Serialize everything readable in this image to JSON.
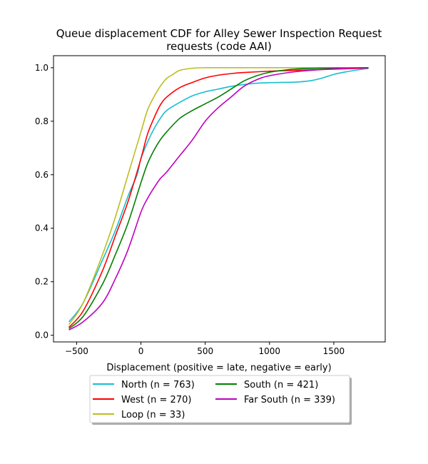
{
  "chart_data": {
    "type": "line",
    "title_line1": "Queue displacement CDF for Alley Sewer Inspection Request",
    "title_line2": "requests (code AAI)",
    "xlabel": "Displacement (positive = late, negative = early)",
    "ylabel": "",
    "xlim": [
      -680,
      1900
    ],
    "ylim": [
      -0.025,
      1.045
    ],
    "xticks": [
      -500,
      0,
      500,
      1000,
      1500
    ],
    "xtick_labels": [
      "−500",
      "0",
      "500",
      "1000",
      "1500"
    ],
    "yticks": [
      0.0,
      0.2,
      0.4,
      0.6,
      0.8,
      1.0
    ],
    "ytick_labels": [
      "0.0",
      "0.2",
      "0.4",
      "0.6",
      "0.8",
      "1.0"
    ],
    "grid": false,
    "legend_position": "below the axes, centered, two columns",
    "series": [
      {
        "name": "North (n = 763)",
        "color": "#17becf",
        "points": [
          [
            -560,
            0.05
          ],
          [
            -450,
            0.12
          ],
          [
            -300,
            0.28
          ],
          [
            -200,
            0.39
          ],
          [
            -100,
            0.52
          ],
          [
            -30,
            0.6
          ],
          [
            0,
            0.66
          ],
          [
            50,
            0.72
          ],
          [
            100,
            0.77
          ],
          [
            150,
            0.81
          ],
          [
            200,
            0.84
          ],
          [
            300,
            0.87
          ],
          [
            400,
            0.895
          ],
          [
            500,
            0.91
          ],
          [
            600,
            0.92
          ],
          [
            700,
            0.93
          ],
          [
            800,
            0.937
          ],
          [
            900,
            0.942
          ],
          [
            1000,
            0.944
          ],
          [
            1100,
            0.945
          ],
          [
            1200,
            0.946
          ],
          [
            1300,
            0.95
          ],
          [
            1400,
            0.96
          ],
          [
            1500,
            0.975
          ],
          [
            1600,
            0.985
          ],
          [
            1700,
            0.993
          ],
          [
            1770,
            0.997
          ]
        ]
      },
      {
        "name": "West (n = 270)",
        "color": "#ff0000",
        "points": [
          [
            -560,
            0.03
          ],
          [
            -450,
            0.09
          ],
          [
            -300,
            0.24
          ],
          [
            -200,
            0.37
          ],
          [
            -100,
            0.5
          ],
          [
            0,
            0.66
          ],
          [
            50,
            0.75
          ],
          [
            100,
            0.81
          ],
          [
            150,
            0.86
          ],
          [
            200,
            0.89
          ],
          [
            300,
            0.925
          ],
          [
            400,
            0.945
          ],
          [
            500,
            0.962
          ],
          [
            600,
            0.972
          ],
          [
            700,
            0.978
          ],
          [
            800,
            0.982
          ],
          [
            1000,
            0.987
          ],
          [
            1200,
            0.99
          ],
          [
            1400,
            0.993
          ],
          [
            1600,
            0.996
          ],
          [
            1770,
            0.999
          ]
        ]
      },
      {
        "name": "Loop (n = 33)",
        "color": "#bcbd22",
        "points": [
          [
            -560,
            0.04
          ],
          [
            -450,
            0.12
          ],
          [
            -300,
            0.3
          ],
          [
            -200,
            0.44
          ],
          [
            -100,
            0.6
          ],
          [
            0,
            0.76
          ],
          [
            50,
            0.84
          ],
          [
            100,
            0.89
          ],
          [
            150,
            0.93
          ],
          [
            200,
            0.96
          ],
          [
            250,
            0.975
          ],
          [
            300,
            0.99
          ],
          [
            400,
            0.998
          ],
          [
            500,
            1.0
          ],
          [
            700,
            1.0
          ],
          [
            1000,
            1.0
          ],
          [
            1400,
            1.0
          ],
          [
            1770,
            1.0
          ]
        ]
      },
      {
        "name": "South (n = 421)",
        "color": "#008000",
        "points": [
          [
            -560,
            0.025
          ],
          [
            -450,
            0.07
          ],
          [
            -300,
            0.19
          ],
          [
            -200,
            0.3
          ],
          [
            -100,
            0.42
          ],
          [
            0,
            0.57
          ],
          [
            50,
            0.64
          ],
          [
            100,
            0.69
          ],
          [
            150,
            0.73
          ],
          [
            200,
            0.76
          ],
          [
            300,
            0.81
          ],
          [
            400,
            0.84
          ],
          [
            500,
            0.865
          ],
          [
            600,
            0.89
          ],
          [
            700,
            0.92
          ],
          [
            800,
            0.95
          ],
          [
            900,
            0.97
          ],
          [
            1000,
            0.983
          ],
          [
            1100,
            0.99
          ],
          [
            1200,
            0.995
          ],
          [
            1400,
            0.998
          ],
          [
            1600,
            0.999
          ],
          [
            1770,
            1.0
          ]
        ]
      },
      {
        "name": "Far South (n = 339)",
        "color": "#bf00bf",
        "points": [
          [
            -560,
            0.02
          ],
          [
            -450,
            0.05
          ],
          [
            -300,
            0.12
          ],
          [
            -200,
            0.21
          ],
          [
            -100,
            0.32
          ],
          [
            0,
            0.46
          ],
          [
            50,
            0.51
          ],
          [
            100,
            0.55
          ],
          [
            150,
            0.585
          ],
          [
            200,
            0.61
          ],
          [
            300,
            0.67
          ],
          [
            400,
            0.73
          ],
          [
            500,
            0.8
          ],
          [
            600,
            0.85
          ],
          [
            700,
            0.89
          ],
          [
            800,
            0.93
          ],
          [
            900,
            0.955
          ],
          [
            1000,
            0.97
          ],
          [
            1200,
            0.985
          ],
          [
            1400,
            0.993
          ],
          [
            1600,
            0.998
          ],
          [
            1770,
            1.0
          ]
        ]
      }
    ]
  }
}
